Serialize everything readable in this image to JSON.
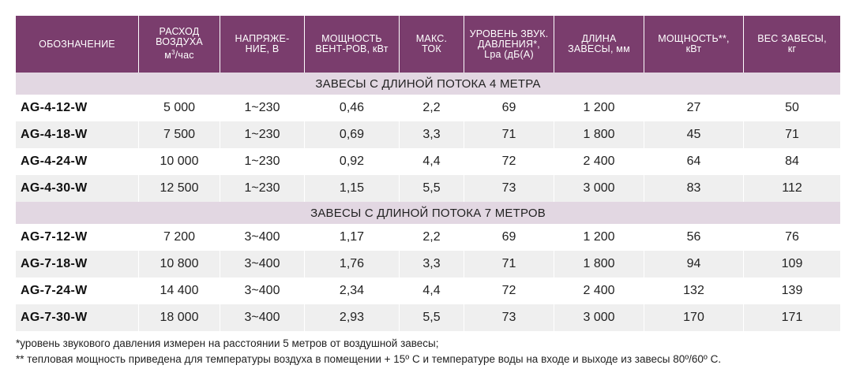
{
  "table": {
    "headers": [
      {
        "line1": "ОБОЗНАЧЕНИЕ"
      },
      {
        "line1": "РАСХОД",
        "line2": "ВОЗДУХА",
        "line3_prefix": "м",
        "line3_sup": "3",
        "line3_suffix": "/час"
      },
      {
        "line1": "НАПРЯЖЕ-",
        "line2": "НИЕ, В"
      },
      {
        "line1": "МОЩНОСТЬ",
        "line2": "ВЕНТ-РОВ, кВт"
      },
      {
        "line1": "МАКС.",
        "line2": "ТОК"
      },
      {
        "line1": "УРОВЕНЬ ЗВУК.",
        "line2": "ДАВЛЕНИЯ*,",
        "line3": "Lpa (дБ(А)"
      },
      {
        "line1": "ДЛИНА",
        "line2": "ЗАВЕСЫ, мм"
      },
      {
        "line1": "МОЩНОСТЬ**,",
        "line2": "кВт"
      },
      {
        "line1": "ВЕС ЗАВЕСЫ,",
        "line2": "кг"
      }
    ],
    "groups": [
      {
        "title": "ЗАВЕСЫ С ДЛИНОЙ ПОТОКА 4 МЕТРА",
        "rows": [
          [
            "AG-4-12-W",
            "5 000",
            "1~230",
            "0,46",
            "2,2",
            "69",
            "1 200",
            "27",
            "50"
          ],
          [
            "AG-4-18-W",
            "7 500",
            "1~230",
            "0,69",
            "3,3",
            "71",
            "1 800",
            "45",
            "71"
          ],
          [
            "AG-4-24-W",
            "10 000",
            "1~230",
            "0,92",
            "4,4",
            "72",
            "2 400",
            "64",
            "84"
          ],
          [
            "AG-4-30-W",
            "12 500",
            "1~230",
            "1,15",
            "5,5",
            "73",
            "3 000",
            "83",
            "112"
          ]
        ]
      },
      {
        "title": "ЗАВЕСЫ С ДЛИНОЙ ПОТОКА 7 МЕТРОВ",
        "rows": [
          [
            "AG-7-12-W",
            "7 200",
            "3~400",
            "1,17",
            "2,2",
            "69",
            "1 200",
            "56",
            "76"
          ],
          [
            "AG-7-18-W",
            "10 800",
            "3~400",
            "1,76",
            "3,3",
            "71",
            "1 800",
            "94",
            "109"
          ],
          [
            "AG-7-24-W",
            "14 400",
            "3~400",
            "2,34",
            "4,4",
            "72",
            "2 400",
            "132",
            "139"
          ],
          [
            "AG-7-30-W",
            "18 000",
            "3~400",
            "2,93",
            "5,5",
            "73",
            "3 000",
            "170",
            "171"
          ]
        ]
      }
    ]
  },
  "footnotes": [
    "*уровень звукового давления измерен на расстоянии 5 метров от воздушной завесы;",
    "** тепловая мощность приведена для температуры воздуха в помещении + 15º С и температуре воды на входе и выходе из завесы 80º/60º С."
  ]
}
